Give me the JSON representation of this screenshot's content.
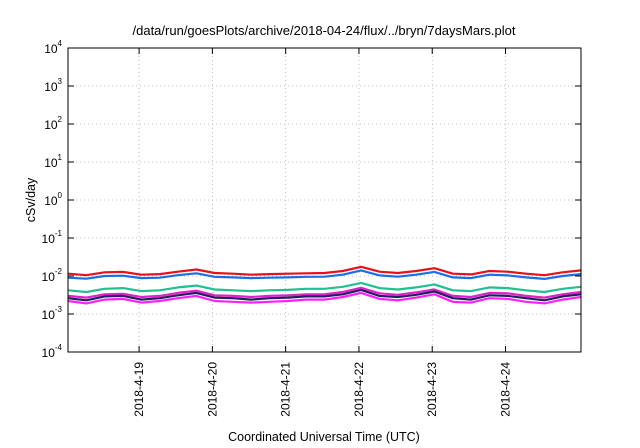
{
  "chart_data": {
    "type": "line",
    "title": "/data/run/goesPlots/archive/2018-04-24/flux/../bryn/7daysMars.plot",
    "xlabel": "Coordinated Universal Time (UTC)",
    "ylabel": "cSv/day",
    "yscale": "log",
    "ylim": [
      0.0001,
      10000
    ],
    "xlim": [
      0,
      7
    ],
    "y_ticks": [
      {
        "base": "10",
        "exp": "4"
      },
      {
        "base": "10",
        "exp": "3"
      },
      {
        "base": "10",
        "exp": "2"
      },
      {
        "base": "10",
        "exp": "1"
      },
      {
        "base": "10",
        "exp": "0"
      },
      {
        "base": "10",
        "exp": "-1"
      },
      {
        "base": "10",
        "exp": "-2"
      },
      {
        "base": "10",
        "exp": "-3"
      },
      {
        "base": "10",
        "exp": "-4"
      }
    ],
    "x_ticks": [
      {
        "label": "2018-4-19",
        "x": 0.97
      },
      {
        "label": "2018-4-20",
        "x": 1.97
      },
      {
        "label": "2018-4-21",
        "x": 2.97
      },
      {
        "label": "2018-4-22",
        "x": 3.97
      },
      {
        "label": "2018-4-23",
        "x": 4.97
      },
      {
        "label": "2018-4-24",
        "x": 5.97
      }
    ],
    "grid": true,
    "x": [
      0,
      0.25,
      0.5,
      0.75,
      1.0,
      1.25,
      1.5,
      1.75,
      2.0,
      2.25,
      2.5,
      2.75,
      3.0,
      3.25,
      3.5,
      3.75,
      4.0,
      4.25,
      4.5,
      4.75,
      5.0,
      5.25,
      5.5,
      5.75,
      6.0,
      6.25,
      6.5,
      6.75,
      7.0
    ],
    "series": [
      {
        "color": "#e8101a",
        "values": [
          0.0115,
          0.0105,
          0.0125,
          0.0128,
          0.0108,
          0.0112,
          0.013,
          0.0148,
          0.012,
          0.0115,
          0.0108,
          0.0112,
          0.0115,
          0.0118,
          0.012,
          0.0135,
          0.0175,
          0.013,
          0.012,
          0.0135,
          0.016,
          0.0115,
          0.011,
          0.0135,
          0.013,
          0.0115,
          0.0105,
          0.0125,
          0.014
        ]
      },
      {
        "color": "#1a6ee8",
        "values": [
          0.009,
          0.0085,
          0.01,
          0.0102,
          0.0088,
          0.009,
          0.0105,
          0.0118,
          0.0095,
          0.0092,
          0.0088,
          0.009,
          0.0092,
          0.0095,
          0.0096,
          0.0108,
          0.014,
          0.0104,
          0.0096,
          0.0108,
          0.0128,
          0.0092,
          0.0088,
          0.0108,
          0.0104,
          0.0092,
          0.0084,
          0.01,
          0.0112
        ]
      },
      {
        "color": "#20c090",
        "values": [
          0.0042,
          0.0038,
          0.0046,
          0.0048,
          0.004,
          0.0042,
          0.005,
          0.0056,
          0.0044,
          0.0042,
          0.004,
          0.0042,
          0.0043,
          0.0046,
          0.0046,
          0.0052,
          0.0066,
          0.0048,
          0.0044,
          0.005,
          0.006,
          0.0042,
          0.004,
          0.005,
          0.0048,
          0.0042,
          0.0038,
          0.0046,
          0.0052
        ]
      },
      {
        "color": "#e020c8",
        "values": [
          0.003,
          0.0027,
          0.0033,
          0.0034,
          0.0028,
          0.003,
          0.0036,
          0.0041,
          0.0031,
          0.003,
          0.0028,
          0.003,
          0.0031,
          0.0033,
          0.0033,
          0.0038,
          0.0049,
          0.0035,
          0.0032,
          0.0037,
          0.0044,
          0.003,
          0.0028,
          0.0036,
          0.0035,
          0.003,
          0.0027,
          0.0033,
          0.0038
        ]
      },
      {
        "color": "#202060",
        "values": [
          0.0026,
          0.0023,
          0.0029,
          0.003,
          0.0024,
          0.0026,
          0.0031,
          0.0036,
          0.0027,
          0.0026,
          0.0024,
          0.0026,
          0.0027,
          0.0029,
          0.0029,
          0.0033,
          0.0043,
          0.003,
          0.0028,
          0.0032,
          0.0039,
          0.0026,
          0.0024,
          0.0031,
          0.003,
          0.0026,
          0.0023,
          0.0029,
          0.0033
        ]
      },
      {
        "color": "#ff20ff",
        "values": [
          0.0022,
          0.0019,
          0.0024,
          0.0025,
          0.002,
          0.0022,
          0.0026,
          0.003,
          0.0022,
          0.0021,
          0.002,
          0.0021,
          0.0022,
          0.0024,
          0.0024,
          0.0028,
          0.0036,
          0.0025,
          0.0023,
          0.0027,
          0.0033,
          0.0021,
          0.002,
          0.0026,
          0.0025,
          0.0021,
          0.0019,
          0.0024,
          0.0028
        ]
      }
    ]
  }
}
